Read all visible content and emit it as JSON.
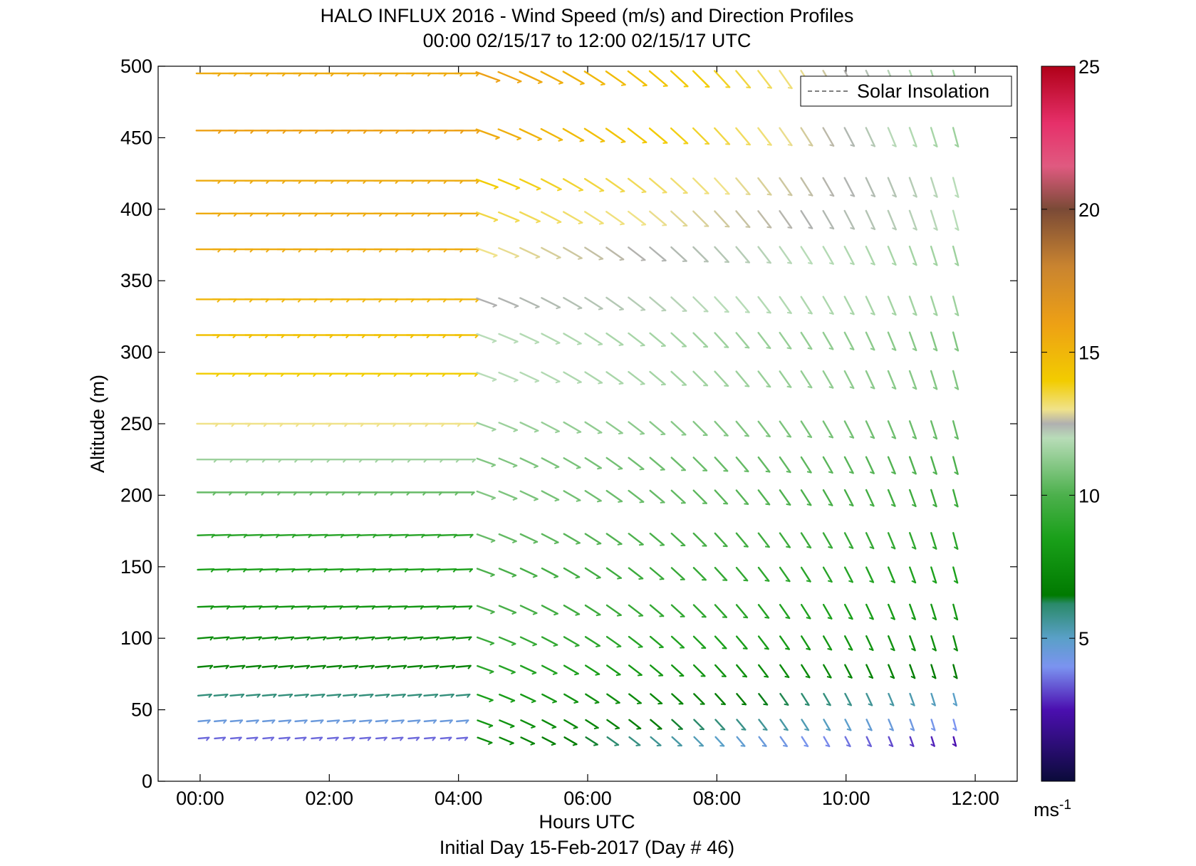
{
  "chart_data": {
    "type": "wind_barb_profile",
    "title": "HALO INFLUX 2016 - Wind Speed (m/s) and Direction Profiles",
    "subtitle": "00:00 02/15/17 to 12:00 02/15/17  UTC",
    "xlabel": "Hours UTC",
    "ylabel": "Altitude (m)",
    "footer": "Initial Day 15-Feb-2017 (Day # 46)",
    "xlim": [
      -0.65,
      12.65
    ],
    "ylim": [
      0,
      500
    ],
    "xticks": [
      0,
      2,
      4,
      6,
      8,
      10,
      12
    ],
    "xtick_labels": [
      "00:00",
      "02:00",
      "04:00",
      "06:00",
      "08:00",
      "10:00",
      "12:00"
    ],
    "yticks": [
      0,
      50,
      100,
      150,
      200,
      250,
      300,
      350,
      400,
      450,
      500
    ],
    "ytick_labels": [
      "0",
      "50",
      "100",
      "150",
      "200",
      "250",
      "300",
      "350",
      "400",
      "450",
      "500"
    ],
    "legend": {
      "label": "Solar Insolation",
      "placement": "top-right"
    },
    "colorbar": {
      "min": 0,
      "max": 25,
      "ticks": [
        5,
        10,
        15,
        20,
        25
      ],
      "tick_labels": [
        "5",
        "10",
        "15",
        "20",
        "25"
      ],
      "unit_label": "ms",
      "unit_exponent": "-1",
      "stops": [
        {
          "v": 0,
          "c": "#0b0b3a"
        },
        {
          "v": 2.5,
          "c": "#4b0fb0"
        },
        {
          "v": 4.0,
          "c": "#7b93f0"
        },
        {
          "v": 5.0,
          "c": "#5aa0c8"
        },
        {
          "v": 6.2,
          "c": "#2a8a6a"
        },
        {
          "v": 6.5,
          "c": "#007a00"
        },
        {
          "v": 8.5,
          "c": "#1aa01a"
        },
        {
          "v": 10.0,
          "c": "#4cb04c"
        },
        {
          "v": 12.0,
          "c": "#b8dcb8"
        },
        {
          "v": 12.5,
          "c": "#b0b0b0"
        },
        {
          "v": 13.0,
          "c": "#f0e28a"
        },
        {
          "v": 14.0,
          "c": "#f2cc00"
        },
        {
          "v": 16.0,
          "c": "#eda015"
        },
        {
          "v": 18.0,
          "c": "#c98430"
        },
        {
          "v": 20.0,
          "c": "#7a4a36"
        },
        {
          "v": 21.5,
          "c": "#e05a80"
        },
        {
          "v": 23.0,
          "c": "#e6306a"
        },
        {
          "v": 25.0,
          "c": "#b00018"
        }
      ]
    },
    "altitudes": [
      30,
      42,
      60,
      80,
      100,
      122,
      148,
      172,
      202,
      225,
      250,
      285,
      312,
      337,
      372,
      397,
      420,
      455,
      495
    ],
    "profiles_segment1": {
      "times": [
        0.0,
        0.25,
        0.5,
        0.75,
        1.0,
        1.25,
        1.5,
        1.75,
        2.0,
        2.25,
        2.5,
        2.75,
        3.0,
        3.25,
        3.5,
        3.75,
        4.0
      ],
      "note": "barbs pointing right (westerly); speed by altitude",
      "speed_by_altitude": [
        3.5,
        4.5,
        6.0,
        7.0,
        7.5,
        8.0,
        8.5,
        9.0,
        10.5,
        11.5,
        13.0,
        14.0,
        14.5,
        15.0,
        15.5,
        15.5,
        15.5,
        16.0,
        15.5
      ],
      "direction_by_altitude": [
        265,
        265,
        265,
        265,
        265,
        268,
        268,
        268,
        270,
        270,
        270,
        270,
        270,
        270,
        270,
        270,
        270,
        270,
        270
      ]
    },
    "profiles_segment2": {
      "times": [
        4.33,
        4.67,
        5.0,
        5.33,
        5.67,
        6.0,
        6.33,
        6.67,
        7.0,
        7.33,
        7.67,
        8.0,
        8.33,
        8.67,
        9.0,
        9.33,
        9.67,
        10.0,
        10.33,
        10.67,
        11.0,
        11.33,
        11.67
      ],
      "note": "barbs rotate from westerly to northerly through the period",
      "direction_start": 290,
      "direction_end": 345,
      "speed_by_altitude_start": [
        7.5,
        8.0,
        8.5,
        9.0,
        9.5,
        10.0,
        10.0,
        10.5,
        11.0,
        11.0,
        11.5,
        12.0,
        12.0,
        12.5,
        13.0,
        13.5,
        14.0,
        15.5,
        16.0
      ],
      "speed_by_altitude_end": [
        2.5,
        4.0,
        5.0,
        6.5,
        7.5,
        8.0,
        8.5,
        9.0,
        9.5,
        10.0,
        10.5,
        11.0,
        11.0,
        11.5,
        11.5,
        12.0,
        12.0,
        11.5,
        11.5
      ]
    }
  }
}
